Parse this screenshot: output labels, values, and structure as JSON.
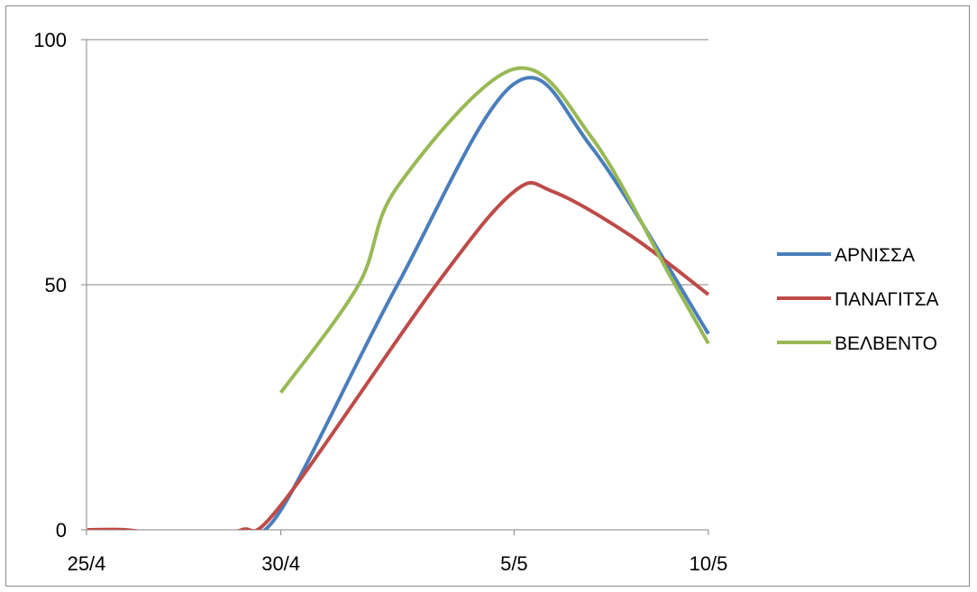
{
  "chart_data": {
    "type": "line",
    "title": "",
    "xlabel": "",
    "ylabel": "",
    "x_ticks": [
      "25/4",
      "30/4",
      "5/5",
      "10/5"
    ],
    "y_ticks": [
      "0",
      "50",
      "100"
    ],
    "ylim": [
      0,
      100
    ],
    "grid": "horizontal",
    "legend_position": "right",
    "series": [
      {
        "name": "ΑΡΝΙΣΣΑ",
        "color": "#4A7EBB",
        "x": [
          "29/4",
          "30/4",
          "2/5",
          "5/5",
          "7/5",
          "10/5"
        ],
        "y": [
          0,
          4,
          50,
          91,
          78,
          40
        ]
      },
      {
        "name": "ΠΑΝΑΓΙΤΣΑ",
        "color": "#BE4B48",
        "x": [
          "25/4",
          "26/4",
          "27/4",
          "28/4",
          "29/4",
          "30/4",
          "3/5",
          "5/5",
          "6/5",
          "8/5",
          "10/5"
        ],
        "y": [
          0,
          0,
          -1,
          -1,
          0,
          5,
          50,
          69,
          69,
          60,
          48
        ]
      },
      {
        "name": "ΒΕΛΒΕΝΤΟ",
        "color": "#98B954",
        "x": [
          "30/4",
          "1/5",
          "2/5",
          "5/5",
          "7/5",
          "9/5",
          "10/5"
        ],
        "y": [
          28,
          50,
          70,
          94,
          80,
          52,
          38
        ]
      }
    ]
  }
}
